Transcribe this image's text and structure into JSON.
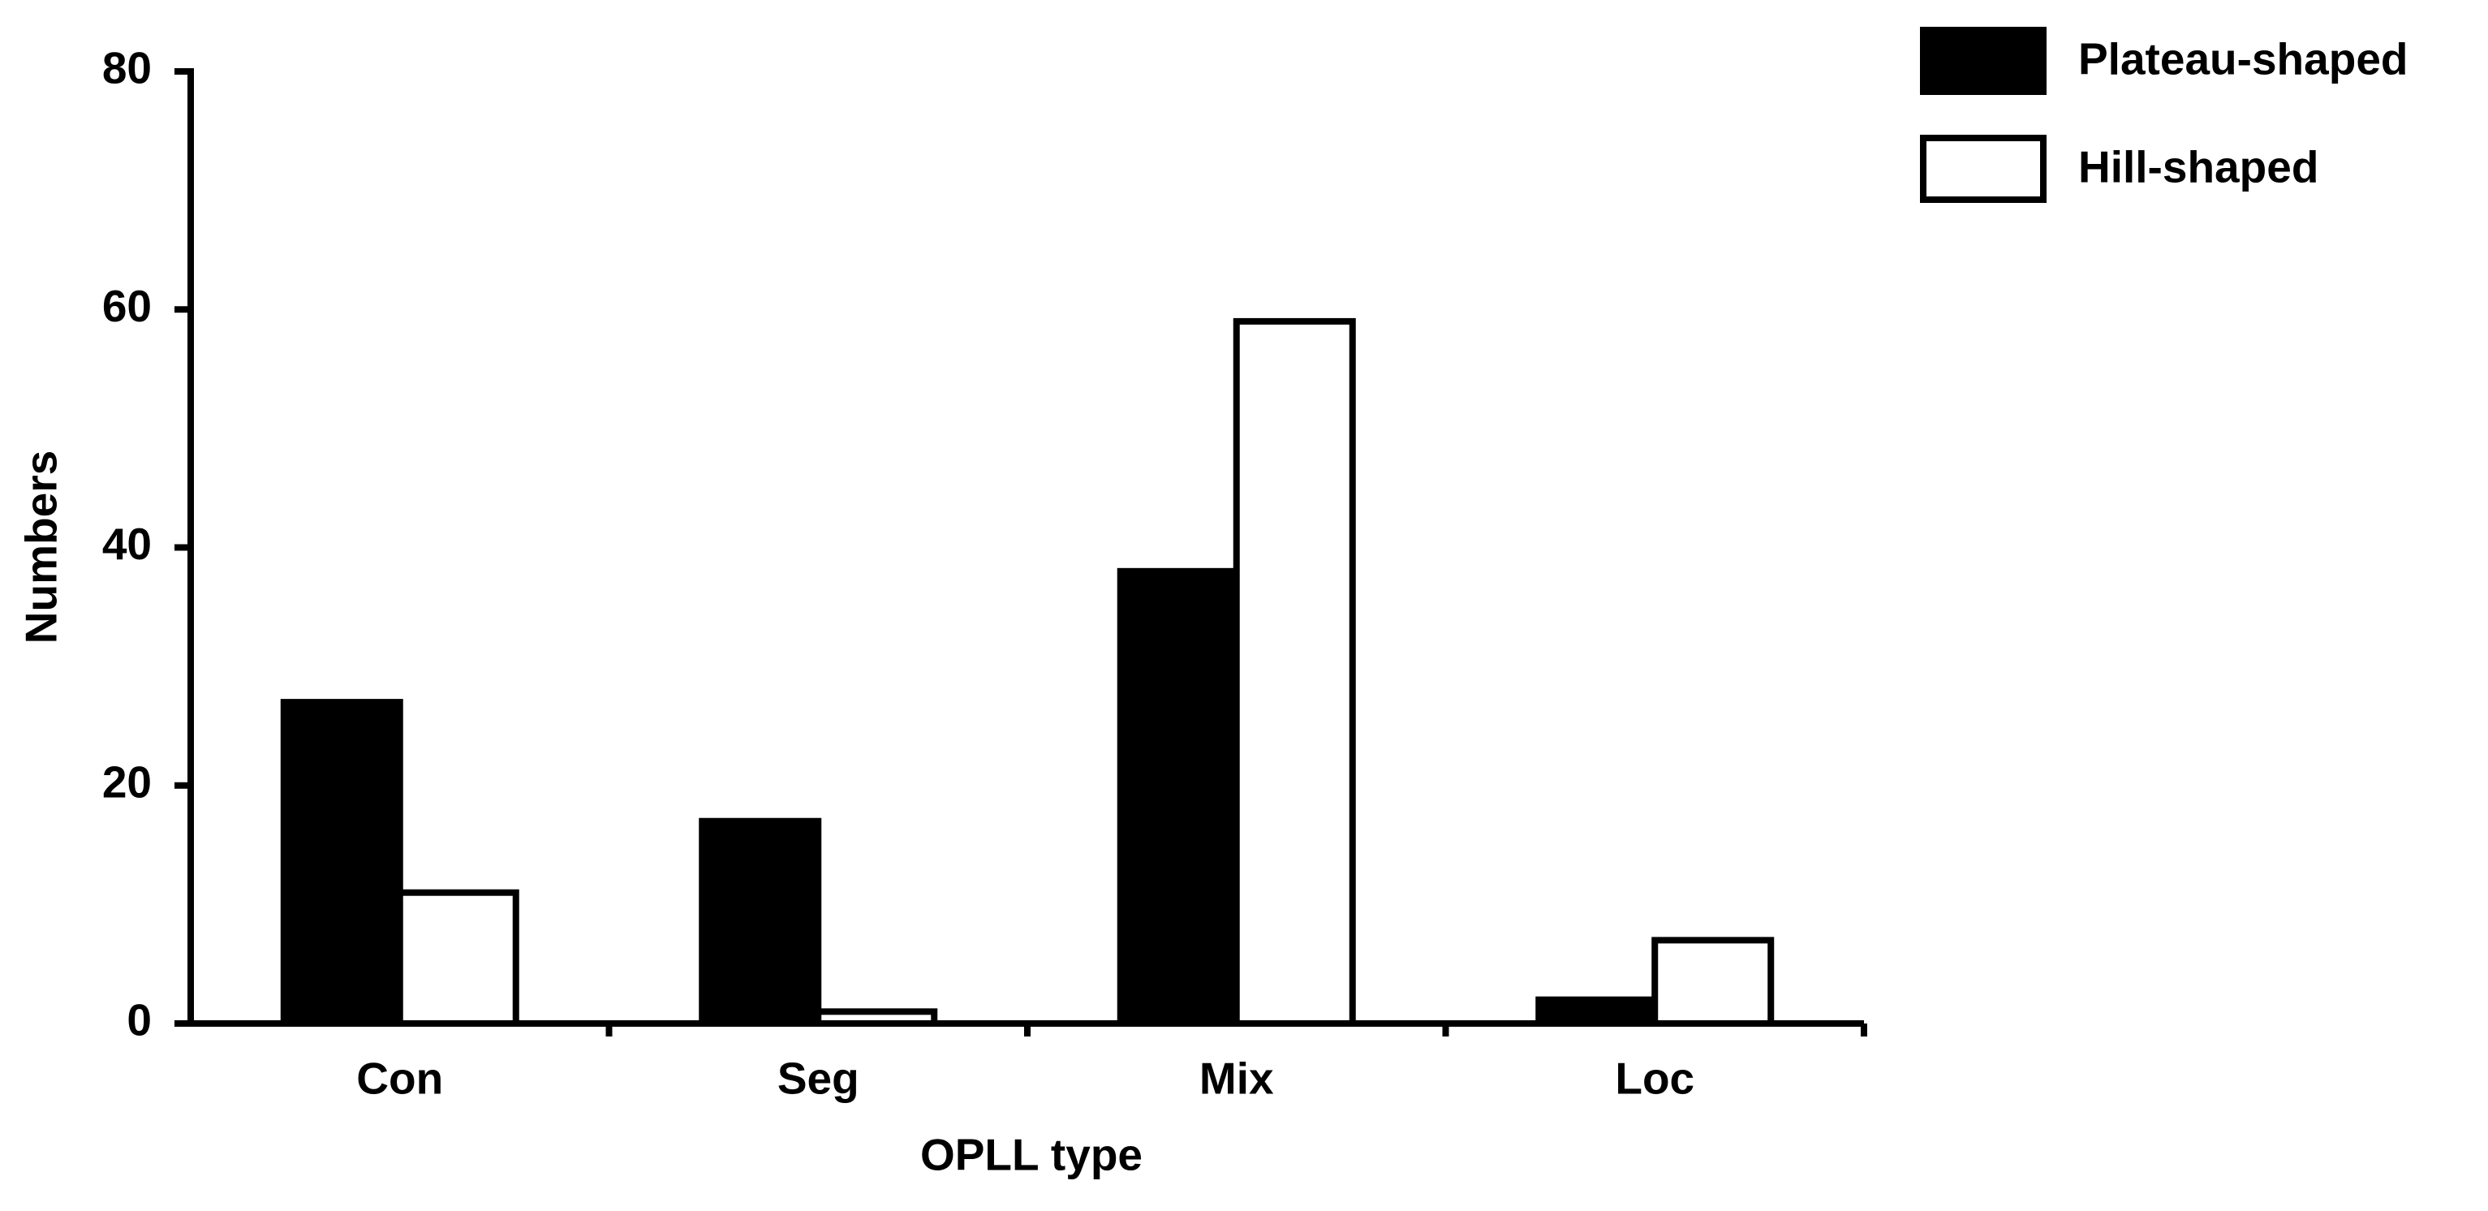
{
  "chart_data": {
    "type": "bar",
    "x_label": "OPLL type",
    "y_label": "Numbers",
    "categories": [
      "Con",
      "Seg",
      "Mix",
      "Loc"
    ],
    "series": [
      {
        "name": "Plateau-shaped",
        "color": "#000000",
        "values": [
          27,
          17,
          38,
          2
        ]
      },
      {
        "name": "Hill-shaped",
        "color": "#ffffff",
        "values": [
          11,
          1,
          59,
          7
        ]
      }
    ],
    "ylim": [
      0,
      80
    ],
    "yticks": [
      0,
      20,
      40,
      60,
      80
    ],
    "grid": false,
    "legend": "top-right"
  }
}
